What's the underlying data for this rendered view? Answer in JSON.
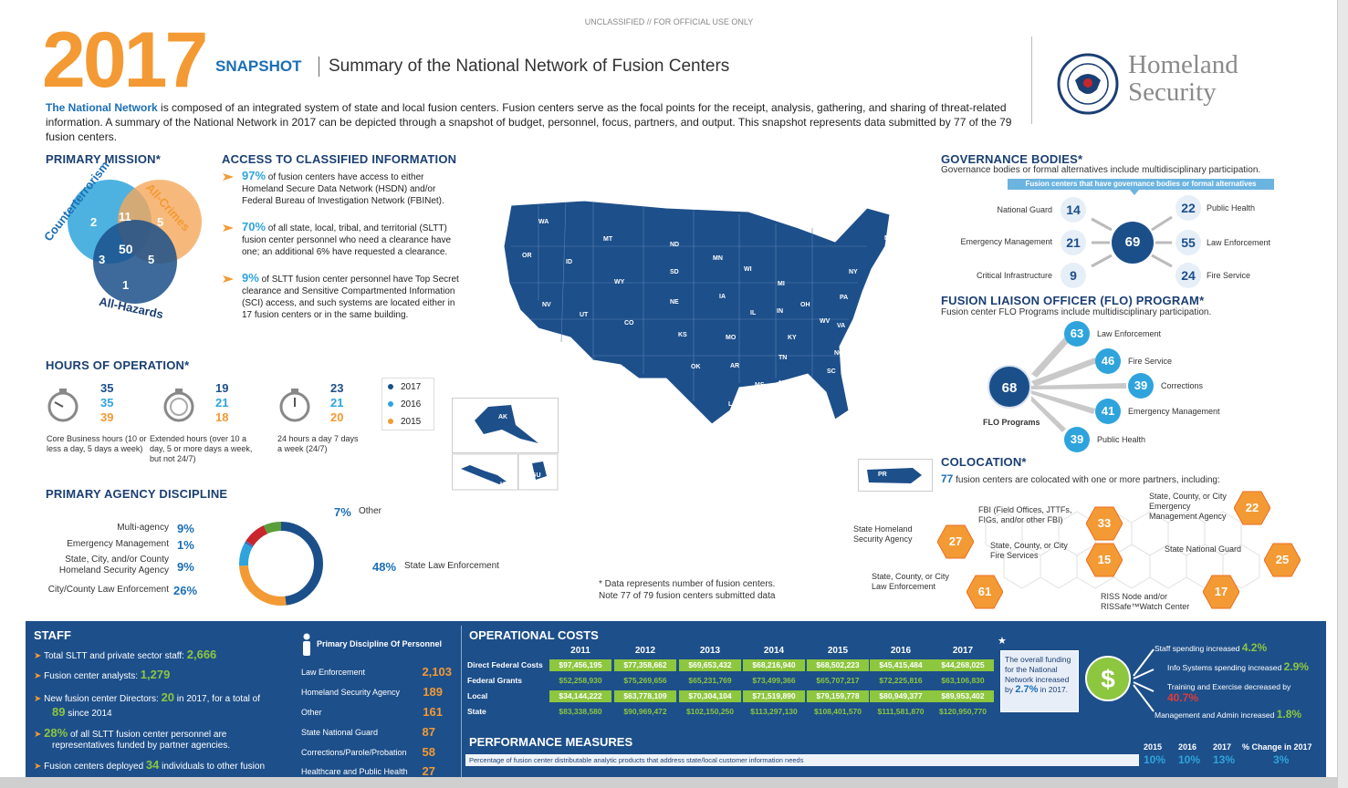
{
  "banner": "UNCLASSIFIED // FOR OFFICIAL USE ONLY",
  "header": {
    "year": "2017",
    "snapshot": "SNAPSHOT",
    "subtitle": "Summary of the National Network of Fusion Centers",
    "dhs_line1": "Homeland",
    "dhs_line2": "Security",
    "seal_label": "DHS seal"
  },
  "intro": {
    "lead": "The National Network",
    "text": " is composed of an integrated system of state and local fusion centers.  Fusion centers serve as the focal points for the receipt, analysis, gathering, and sharing of threat-related information.  A summary of the National Network in 2017 can be depicted through a snapshot of budget, personnel, focus, partners, and output.  This snapshot represents data submitted by 77 of the 79 fusion centers."
  },
  "mission": {
    "title": "PRIMARY MISSION*",
    "counterterrorism": "Counterterrorism",
    "all_crimes": "All-Crimes",
    "all_hazards": "All-Hazards",
    "values": {
      "ct_only": "2",
      "ct_ac": "11",
      "ac_only": "5",
      "all": "50",
      "ct_ah": "3",
      "ac_ah": "5",
      "ah_only": "1"
    }
  },
  "access": {
    "title": "ACCESS TO CLASSIFIED INFORMATION",
    "items": [
      {
        "pct": "97%",
        "text": " of fusion centers have access to either Homeland Secure Data Network (HSDN) and/or Federal Bureau of Investigation Network (FBINet)."
      },
      {
        "pct": "70%",
        "text": " of all state, local, tribal, and territorial (SLTT) fusion center personnel who need a clearance have one; an additional 6% have requested a clearance."
      },
      {
        "pct": "9%",
        "text": " of SLTT fusion center personnel have Top Secret clearance and Sensitive Compartmented Information (SCI) access, and such systems are located either in 17 fusion centers or in the same building."
      }
    ]
  },
  "hours": {
    "title": "HOURS OF OPERATION*",
    "groups": [
      {
        "v2017": "35",
        "v2016": "35",
        "v2015": "39",
        "label": "Core Business hours (10 or less a day, 5 days a week)"
      },
      {
        "v2017": "19",
        "v2016": "21",
        "v2015": "18",
        "label": "Extended hours (over 10 a day, 5 or more days a week, but not 24/7)"
      },
      {
        "v2017": "23",
        "v2016": "21",
        "v2015": "20",
        "label": "24 hours a day 7 days a week (24/7)"
      }
    ],
    "legend": [
      "2017",
      "2016",
      "2015"
    ]
  },
  "discipline": {
    "title": "PRIMARY AGENCY DISCIPLINE",
    "items": [
      {
        "label": "Multi-agency",
        "pct": "9%"
      },
      {
        "label": "Emergency Management",
        "pct": "1%"
      },
      {
        "label": "State, City, and/or County Homeland Security Agency",
        "pct": "9%"
      },
      {
        "label": "City/County Law Enforcement",
        "pct": "26%"
      }
    ],
    "other": {
      "pct": "7%",
      "label": "Other"
    },
    "state_le": {
      "pct": "48%",
      "label": "State Law Enforcement"
    }
  },
  "map": {
    "note1": "* Data represents number of fusion centers.",
    "note2": "Note 77 of 79 fusion centers submitted data",
    "states": [
      "WA",
      "OR",
      "CA",
      "NV",
      "ID",
      "MT",
      "WY",
      "UT",
      "AZ",
      "CO",
      "NM",
      "ND",
      "SD",
      "NE",
      "KS",
      "OK",
      "TX",
      "MN",
      "IA",
      "MO",
      "AR",
      "LA",
      "WI",
      "IL",
      "MI",
      "IN",
      "OH",
      "KY",
      "TN",
      "MS",
      "AL",
      "GA",
      "FL",
      "SC",
      "NC",
      "VA",
      "WV",
      "PA",
      "NY",
      "ME",
      "AK",
      "HI",
      "GU",
      "PR"
    ]
  },
  "governance": {
    "title": "GOVERNANCE BODIES*",
    "subtitle": "Governance bodies or formal alternatives include multidisciplinary participation.",
    "callout": "Fusion centers that have governance bodies or formal alternatives",
    "center": "69",
    "left": [
      {
        "label": "National Guard",
        "v": "14"
      },
      {
        "label": "Emergency Management",
        "v": "21"
      },
      {
        "label": "Critical Infrastructure",
        "v": "9"
      }
    ],
    "right": [
      {
        "label": "Public Health",
        "v": "22"
      },
      {
        "label": "Law Enforcement",
        "v": "55"
      },
      {
        "label": "Fire Service",
        "v": "24"
      }
    ]
  },
  "flo": {
    "title": "FUSION LIAISON OFFICER (FLO) PROGRAM*",
    "subtitle": "Fusion center FLO Programs include multidisciplinary participation.",
    "center": "68",
    "center_label": "FLO Programs",
    "items": [
      {
        "v": "63",
        "label": "Law Enforcement"
      },
      {
        "v": "46",
        "label": "Fire Service"
      },
      {
        "v": "39",
        "label": "Corrections"
      },
      {
        "v": "41",
        "label": "Emergency Management"
      },
      {
        "v": "39",
        "label": "Public Health"
      }
    ]
  },
  "colocation": {
    "title": "COLOCATION*",
    "lead": "77",
    "subtitle": " fusion centers are colocated with one or more partners, including:",
    "items": [
      {
        "v": "27",
        "label": "State Homeland Security Agency"
      },
      {
        "v": "33",
        "label": "FBI (Field Offices, JTTFs, FIGs, and/or other FBI)"
      },
      {
        "v": "22",
        "label": "State, County, or City Emergency Management Agency"
      },
      {
        "v": "15",
        "label": "State, County, or City Fire Services"
      },
      {
        "v": "25",
        "label": "State National Guard"
      },
      {
        "v": "61",
        "label": "State, County, or City Law Enforcement"
      },
      {
        "v": "17",
        "label": "RISS Node and/or RISSafe™Watch Center"
      }
    ]
  },
  "staff": {
    "title": "STAFF",
    "items": [
      {
        "pre": "Total SLTT and private sector staff: ",
        "num": "2,666",
        "post": ""
      },
      {
        "pre": "Fusion center analysts: ",
        "num": "1,279",
        "post": ""
      },
      {
        "pre": "New fusion center Directors: ",
        "num": "20",
        "post": " in 2017, for a total of"
      },
      {
        "pre": "",
        "num": "89",
        "post": " since 2014"
      },
      {
        "pre": "",
        "num": "28%",
        "post": " of all SLTT fusion center personnel are"
      },
      {
        "pre": "representatives funded by partner agencies.",
        "num": "",
        "post": ""
      },
      {
        "pre": "Fusion centers deployed ",
        "num": "34",
        "post": " individuals to other fusion"
      }
    ],
    "personnel_title": "Primary Discipline Of Personnel",
    "personnel": [
      {
        "label": "Law Enforcement",
        "v": "2,103"
      },
      {
        "label": "Homeland Security Agency",
        "v": "189"
      },
      {
        "label": "Other",
        "v": "161"
      },
      {
        "label": "State National Guard",
        "v": "87"
      },
      {
        "label": "Corrections/Parole/Probation",
        "v": "58"
      },
      {
        "label": "Healthcare and Public Health",
        "v": "27"
      }
    ]
  },
  "costs": {
    "title": "OPERATIONAL COSTS",
    "years": [
      "2011",
      "2012",
      "2013",
      "2014",
      "2015",
      "2016",
      "2017"
    ],
    "rows": [
      {
        "label": "Direct Federal Costs",
        "values": [
          "$97,456,195",
          "$77,358,662",
          "$69,653,432",
          "$68,216,940",
          "$68,502,223",
          "$45,415,484",
          "$44,268,025"
        ]
      },
      {
        "label": "Federal Grants",
        "values": [
          "$52,258,930",
          "$75,269,656",
          "$65,231,769",
          "$73,499,366",
          "$65,707,217",
          "$72,225,816",
          "$63,106,830"
        ]
      },
      {
        "label": "Local",
        "values": [
          "$34,144,222",
          "$63,778,109",
          "$70,304,104",
          "$71,519,890",
          "$79,159,778",
          "$80,949,377",
          "$89,953,402"
        ]
      },
      {
        "label": "State",
        "values": [
          "$83,338,580",
          "$90,969,472",
          "$102,150,250",
          "$113,297,130",
          "$108,401,570",
          "$111,581,870",
          "$120,950,770"
        ]
      }
    ],
    "overall_text": "The overall funding for the National Network increased by ",
    "overall_pct": "2.7%",
    "overall_post": " in 2017.",
    "changes": [
      {
        "label": "Staff spending increased ",
        "v": "4.2%"
      },
      {
        "label": "Info Systems spending increased ",
        "v": "2.9%"
      },
      {
        "label": "Training and Exercise decreased by ",
        "v": "40.7%"
      },
      {
        "label": "Management and Admin increased ",
        "v": "1.8%"
      }
    ]
  },
  "performance": {
    "title": "PERFORMANCE MEASURES",
    "headers": [
      "2015",
      "2016",
      "2017",
      "% Change in 2017"
    ],
    "rows": [
      {
        "label": "Percentage of fusion center distributable analytic products that address state/local customer information needs",
        "values": [
          "10%",
          "10%",
          "13%",
          "3%"
        ]
      }
    ]
  }
}
